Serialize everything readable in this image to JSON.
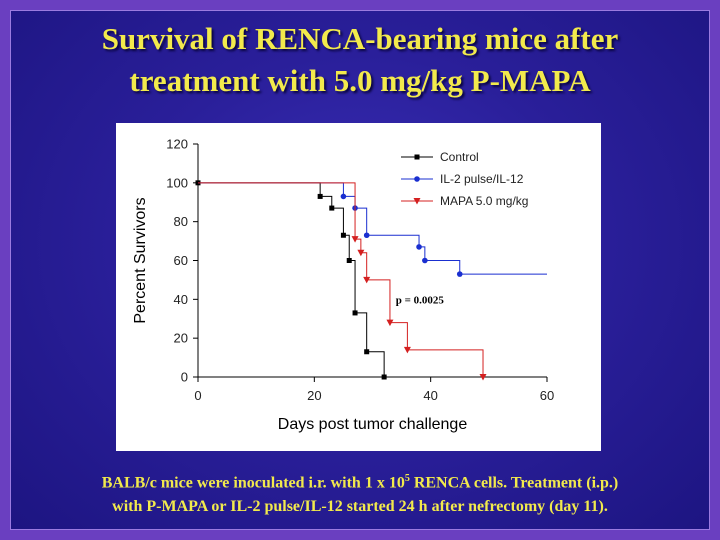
{
  "slide": {
    "title_line1": "Survival of RENCA-bearing mice after",
    "title_line2": "treatment with 5.0 mg/kg P-MAPA",
    "caption_line1_pre": "BALB/c mice were inoculated i.r. with 1 x 10",
    "caption_line1_sup": "5",
    "caption_line1_post": " RENCA cells. Treatment (i.p.)",
    "caption_line2": "with P-MAPA or IL-2 pulse/IL-12 started 24 h after nefrectomy (day 11).",
    "colors": {
      "title": "#f2ea4c",
      "background": "#2a1f9a",
      "border": "#6a3fc0"
    }
  },
  "chart_data": {
    "type": "line",
    "step": true,
    "xlabel": "Days post tumor challenge",
    "ylabel": "Percent Survivors",
    "xlim": [
      0,
      60
    ],
    "ylim": [
      0,
      120
    ],
    "xticks": [
      0,
      20,
      40,
      60
    ],
    "yticks": [
      0,
      20,
      40,
      60,
      80,
      100,
      120
    ],
    "grid": false,
    "legend_position": "top-right",
    "annotation": "p = 0.0025",
    "series": [
      {
        "name": "Control",
        "color": "#000000",
        "marker": "square",
        "steps": [
          [
            0,
            100
          ],
          [
            21,
            93
          ],
          [
            23,
            87
          ],
          [
            25,
            73
          ],
          [
            26,
            60
          ],
          [
            27,
            33
          ],
          [
            29,
            13
          ],
          [
            32,
            0
          ]
        ],
        "markers": [
          [
            0,
            100
          ],
          [
            21,
            93
          ],
          [
            23,
            87
          ],
          [
            25,
            73
          ],
          [
            26,
            60
          ],
          [
            27,
            33
          ],
          [
            29,
            13
          ],
          [
            32,
            0
          ]
        ]
      },
      {
        "name": "IL-2 pulse/IL-12",
        "color": "#1a2fd0",
        "marker": "circle",
        "steps": [
          [
            0,
            100
          ],
          [
            25,
            93
          ],
          [
            27,
            87
          ],
          [
            29,
            73
          ],
          [
            38,
            67
          ],
          [
            39,
            60
          ],
          [
            45,
            53
          ]
        ],
        "end_x": 60,
        "markers": [
          [
            25,
            93
          ],
          [
            27,
            87
          ],
          [
            29,
            73
          ],
          [
            38,
            67
          ],
          [
            39,
            60
          ],
          [
            45,
            53
          ]
        ]
      },
      {
        "name": "MAPA 5.0 mg/kg",
        "color": "#d42020",
        "marker": "triangle-down",
        "steps": [
          [
            0,
            100
          ],
          [
            27,
            71
          ],
          [
            28,
            64
          ],
          [
            29,
            50
          ],
          [
            33,
            28
          ],
          [
            36,
            14
          ],
          [
            49,
            0
          ]
        ],
        "markers": [
          [
            27,
            71
          ],
          [
            28,
            64
          ],
          [
            29,
            50
          ],
          [
            33,
            28
          ],
          [
            36,
            14
          ],
          [
            49,
            0
          ]
        ]
      }
    ]
  }
}
